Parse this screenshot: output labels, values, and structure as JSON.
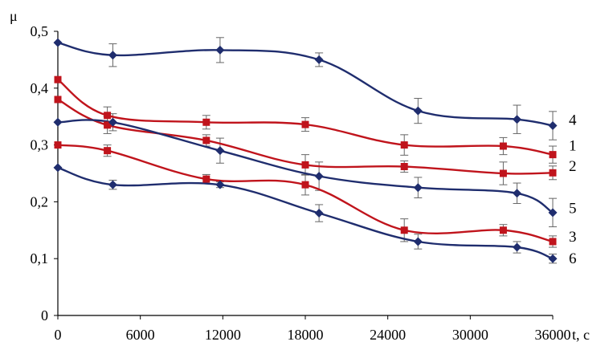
{
  "chart_data": {
    "type": "line",
    "title": "",
    "xlabel": "t, c",
    "ylabel": "μ",
    "xlim": [
      0,
      36000
    ],
    "ylim": [
      0,
      0.5
    ],
    "x_ticks": [
      0,
      6000,
      12000,
      18000,
      24000,
      30000,
      36000
    ],
    "x_tick_labels": [
      "0",
      "6000",
      "12000",
      "18000",
      "24000",
      "30000",
      "36000"
    ],
    "y_ticks": [
      0,
      0.1,
      0.2,
      0.3,
      0.4,
      0.5
    ],
    "y_tick_labels": [
      "0",
      "0,1",
      "0,2",
      "0,3",
      "0,4",
      "0,5"
    ],
    "grid": false,
    "legend": "inline labels at right end of curves",
    "colors": {
      "red": "#c0141c",
      "blue": "#1f2d6e"
    },
    "series": [
      {
        "name": "1",
        "color": "red",
        "marker": "square",
        "x": [
          0,
          3600,
          10800,
          18000,
          25200,
          32400,
          36000
        ],
        "y": [
          0.38,
          0.335,
          0.308,
          0.265,
          0.262,
          0.25,
          0.251
        ],
        "err": [
          0,
          0.015,
          0.01,
          0.018,
          0.01,
          0.02,
          0.012
        ]
      },
      {
        "name": "2",
        "color": "red",
        "marker": "square",
        "x": [
          0,
          3600,
          10800,
          18000,
          25200,
          32400,
          36000
        ],
        "y": [
          0.415,
          0.352,
          0.34,
          0.336,
          0.3,
          0.298,
          0.283
        ],
        "err": [
          0,
          0.015,
          0.012,
          0.012,
          0.018,
          0.015,
          0.015
        ]
      },
      {
        "name": "3",
        "color": "red",
        "marker": "square",
        "x": [
          0,
          3600,
          10800,
          18000,
          25200,
          32400,
          36000
        ],
        "y": [
          0.3,
          0.29,
          0.24,
          0.23,
          0.15,
          0.15,
          0.13
        ],
        "err": [
          0,
          0.01,
          0.008,
          0.018,
          0.02,
          0.01,
          0.01
        ]
      },
      {
        "name": "4",
        "color": "blue",
        "marker": "diamond",
        "x": [
          0,
          4000,
          11800,
          19000,
          26200,
          33400,
          36000
        ],
        "y": [
          0.48,
          0.458,
          0.467,
          0.45,
          0.36,
          0.345,
          0.334
        ],
        "err": [
          0,
          0.02,
          0.022,
          0.012,
          0.022,
          0.025,
          0.025
        ]
      },
      {
        "name": "5",
        "color": "blue",
        "marker": "diamond",
        "x": [
          0,
          4000,
          11800,
          19000,
          26200,
          33400,
          36000
        ],
        "y": [
          0.34,
          0.34,
          0.29,
          0.245,
          0.225,
          0.215,
          0.181
        ],
        "err": [
          0,
          0.015,
          0.022,
          0.025,
          0.018,
          0.018,
          0.025
        ]
      },
      {
        "name": "6",
        "color": "blue",
        "marker": "diamond",
        "x": [
          0,
          4000,
          11800,
          19000,
          26200,
          33400,
          36000
        ],
        "y": [
          0.26,
          0.23,
          0.23,
          0.18,
          0.13,
          0.12,
          0.1
        ],
        "err": [
          0,
          0.008,
          0.005,
          0.015,
          0.013,
          0.01,
          0.008
        ]
      }
    ]
  }
}
